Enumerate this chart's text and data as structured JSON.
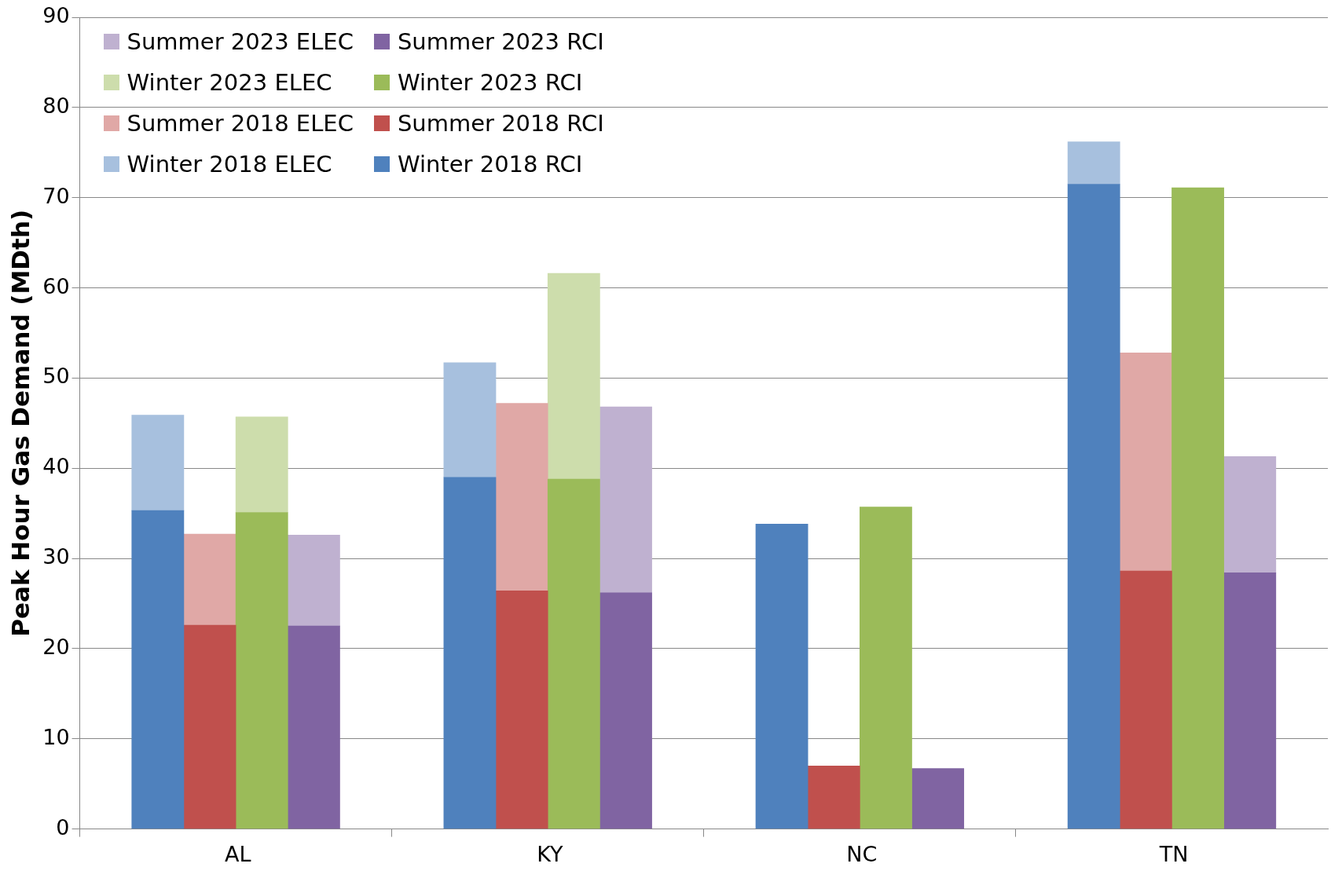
{
  "chart_data": {
    "type": "bar",
    "ylabel": "Peak Hour Gas Demand (MDth)",
    "stacked": true,
    "grid": "y",
    "legend": "top left",
    "ylim": [
      0,
      90
    ],
    "yticks": [
      0,
      10,
      20,
      30,
      40,
      50,
      60,
      70,
      80,
      90
    ],
    "categories": [
      null,
      null,
      null,
      "AL",
      null,
      null,
      null,
      null,
      null,
      "KY",
      null,
      null,
      null,
      null,
      null,
      "NC",
      null,
      null,
      null,
      null,
      null,
      "TN",
      null,
      null
    ],
    "series": [
      {
        "name": "Winter 2018 RCI",
        "color": "#4f81bd",
        "values": [
          null,
          35.3,
          null,
          null,
          null,
          null,
          null,
          39,
          null,
          null,
          null,
          null,
          null,
          33.8,
          null,
          null,
          null,
          null,
          null,
          71.5,
          null,
          null,
          null,
          null
        ]
      },
      {
        "name": "Summer 2018 RCI",
        "color": "#c0504d",
        "values": [
          null,
          null,
          22.6,
          null,
          null,
          null,
          null,
          null,
          26.4,
          null,
          null,
          null,
          null,
          null,
          7.0,
          null,
          null,
          null,
          null,
          null,
          28.6,
          null,
          null,
          null
        ]
      },
      {
        "name": "Winter 2023 RCI",
        "color": "#9bbb59",
        "values": [
          null,
          null,
          null,
          35.1,
          null,
          null,
          null,
          null,
          null,
          38.8,
          null,
          null,
          null,
          null,
          null,
          35.7,
          null,
          null,
          null,
          null,
          null,
          71.1,
          null,
          null
        ]
      },
      {
        "name": "Summer 2023 RCI",
        "color": "#8064a2",
        "values": [
          null,
          null,
          null,
          null,
          22.5,
          null,
          null,
          null,
          null,
          null,
          26.2,
          null,
          null,
          null,
          null,
          null,
          6.7,
          null,
          null,
          null,
          null,
          null,
          28.4,
          null
        ]
      },
      {
        "name": "Winter 2018 ELEC",
        "color": "#a7c0de",
        "values": [
          null,
          10.6,
          null,
          null,
          null,
          null,
          null,
          12.7,
          null,
          null,
          null,
          null,
          null,
          null,
          null,
          null,
          null,
          null,
          null,
          4.7,
          null,
          null,
          null,
          null
        ]
      },
      {
        "name": "Summer 2018 ELEC",
        "color": "#e0a8a6",
        "values": [
          null,
          null,
          10.1,
          null,
          null,
          null,
          null,
          null,
          20.8,
          null,
          null,
          null,
          null,
          null,
          null,
          null,
          null,
          null,
          null,
          null,
          24.2,
          null,
          null,
          null
        ]
      },
      {
        "name": "Winter 2023 ELEC",
        "color": "#cdddac",
        "values": [
          null,
          null,
          null,
          10.6,
          null,
          null,
          null,
          null,
          null,
          22.8,
          null,
          null,
          null,
          null,
          null,
          null,
          null,
          null,
          null,
          null,
          null,
          null,
          null,
          null
        ]
      },
      {
        "name": "Summer 2023 ELEC",
        "color": "#bfb1d0",
        "values": [
          null,
          null,
          null,
          null,
          10.1,
          null,
          null,
          null,
          null,
          null,
          20.6,
          null,
          null,
          null,
          null,
          null,
          null,
          null,
          null,
          null,
          null,
          null,
          12.9,
          null
        ]
      }
    ]
  }
}
